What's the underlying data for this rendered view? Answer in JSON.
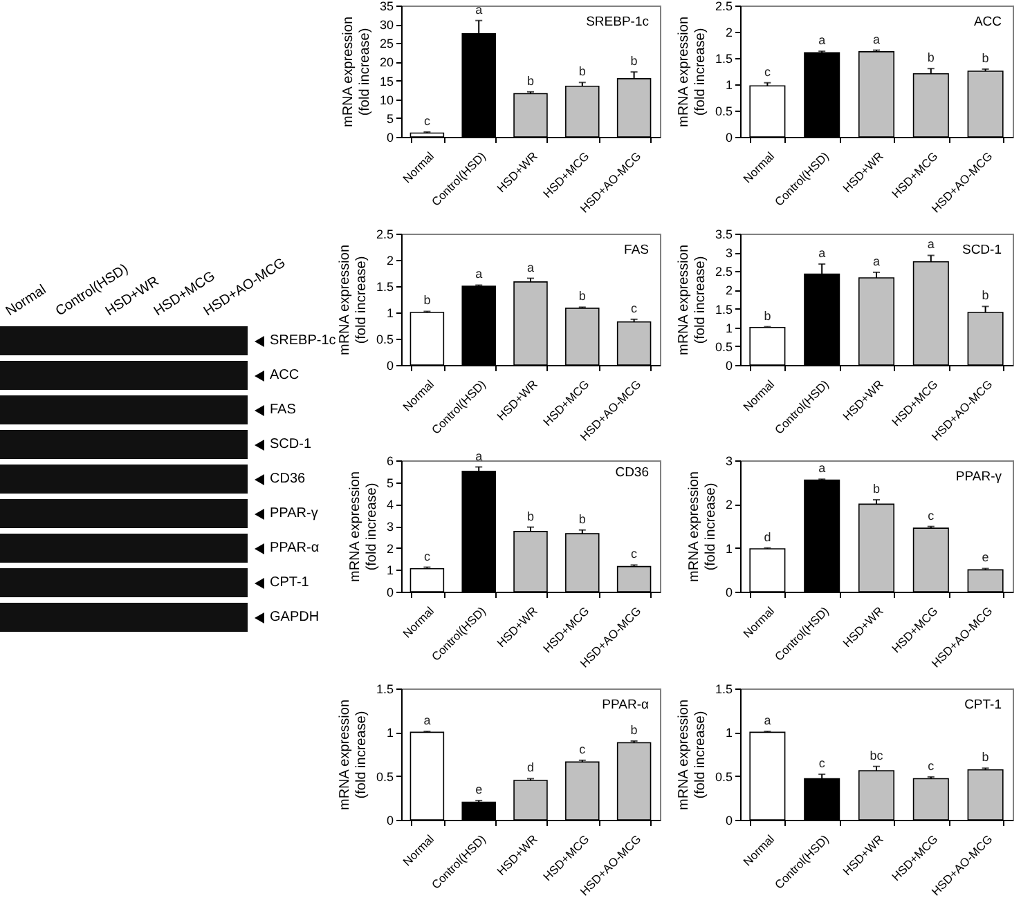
{
  "chart_data": [
    {
      "type": "other",
      "categories": [
        "Normal",
        "Control(HSD)",
        "HSD+WR",
        "HSD+MCG",
        "HSD+AO-MCG"
      ],
      "y_categories": [
        "SREBP-1c",
        "ACC",
        "FAS",
        "SCD-1",
        "CD36",
        "PPAR-γ",
        "PPAR-α",
        "CPT-1",
        "GAPDH"
      ]
    },
    {
      "type": "bar",
      "title": "SREBP-1c",
      "ylabel": "mRNA expression\n(fold increase)",
      "categories": [
        "Normal",
        "Control(HSD)",
        "HSD+WR",
        "HSD+MCG",
        "HSD+AO-MCG"
      ],
      "values": [
        1,
        27.5,
        11.5,
        13.5,
        15.5
      ],
      "colors": [
        "#ffffff",
        "#000000",
        "#c0c0c0",
        "#c0c0c0",
        "#c0c0c0"
      ],
      "errors": [
        [
          1,
          1.3
        ],
        [
          27.5,
          31
        ],
        [
          11.5,
          12
        ],
        [
          13.5,
          14.5
        ],
        [
          15.5,
          17.3
        ]
      ],
      "ylim": [
        0,
        35
      ],
      "yticks": [
        0,
        5,
        10,
        15,
        20,
        25,
        30,
        35
      ],
      "value_labels": [
        "c",
        "a",
        "b",
        "b",
        "b"
      ]
    },
    {
      "type": "bar",
      "title": "ACC",
      "ylabel": "mRNA expression\n(fold increase)",
      "categories": [
        "Normal",
        "Control(HSD)",
        "HSD+WR",
        "HSD+MCG",
        "HSD+AO-MCG"
      ],
      "values": [
        0.97,
        1.6,
        1.62,
        1.2,
        1.25
      ],
      "colors": [
        "#ffffff",
        "#000000",
        "#c0c0c0",
        "#c0c0c0",
        "#c0c0c0"
      ],
      "errors": [
        [
          0.97,
          1.03
        ],
        [
          1.6,
          1.63
        ],
        [
          1.62,
          1.65
        ],
        [
          1.2,
          1.3
        ],
        [
          1.25,
          1.29
        ]
      ],
      "ylim": [
        0,
        2.5
      ],
      "yticks": [
        0,
        0.5,
        1,
        1.5,
        2,
        2.5
      ],
      "value_labels": [
        "c",
        "a",
        "a",
        "b",
        "b"
      ]
    },
    {
      "type": "bar",
      "title": "FAS",
      "ylabel": "mRNA expression\n(fold increase)",
      "categories": [
        "Normal",
        "Control(HSD)",
        "HSD+WR",
        "HSD+MCG",
        "HSD+AO-MCG"
      ],
      "values": [
        1,
        1.5,
        1.58,
        1.08,
        0.82
      ],
      "colors": [
        "#ffffff",
        "#000000",
        "#c0c0c0",
        "#c0c0c0",
        "#c0c0c0"
      ],
      "errors": [
        [
          1,
          1.02
        ],
        [
          1.5,
          1.52
        ],
        [
          1.58,
          1.65
        ],
        [
          1.08,
          1.1
        ],
        [
          0.82,
          0.87
        ]
      ],
      "ylim": [
        0,
        2.5
      ],
      "yticks": [
        0,
        0.5,
        1,
        1.5,
        2,
        2.5
      ],
      "value_labels": [
        "b",
        "a",
        "a",
        "b",
        "c"
      ]
    },
    {
      "type": "bar",
      "title": "SCD-1",
      "ylabel": "mRNA expression\n(fold increase)",
      "categories": [
        "Normal",
        "Control(HSD)",
        "HSD+WR",
        "HSD+MCG",
        "HSD+AO-MCG"
      ],
      "values": [
        1,
        2.42,
        2.32,
        2.75,
        1.4
      ],
      "colors": [
        "#ffffff",
        "#000000",
        "#c0c0c0",
        "#c0c0c0",
        "#c0c0c0"
      ],
      "errors": [
        [
          1,
          1.02
        ],
        [
          2.42,
          2.69
        ],
        [
          2.32,
          2.47
        ],
        [
          2.75,
          2.92
        ],
        [
          1.4,
          1.56
        ]
      ],
      "ylim": [
        0,
        3.5
      ],
      "yticks": [
        0,
        0.5,
        1,
        1.5,
        2,
        2.5,
        3,
        3.5
      ],
      "value_labels": [
        "b",
        "a",
        "a",
        "a",
        "b"
      ]
    },
    {
      "type": "bar",
      "title": "CD36",
      "ylabel": "mRNA expression\n(fold increase)",
      "categories": [
        "Normal",
        "Control(HSD)",
        "HSD+WR",
        "HSD+MCG",
        "HSD+AO-MCG"
      ],
      "values": [
        1.05,
        5.5,
        2.75,
        2.65,
        1.15
      ],
      "colors": [
        "#ffffff",
        "#000000",
        "#c0c0c0",
        "#c0c0c0",
        "#c0c0c0"
      ],
      "errors": [
        [
          1.05,
          1.12
        ],
        [
          5.5,
          5.7
        ],
        [
          2.75,
          2.95
        ],
        [
          2.65,
          2.82
        ],
        [
          1.15,
          1.22
        ]
      ],
      "ylim": [
        0,
        6
      ],
      "yticks": [
        0,
        1,
        2,
        3,
        4,
        5,
        6
      ],
      "value_labels": [
        "c",
        "a",
        "b",
        "b",
        "c"
      ]
    },
    {
      "type": "bar",
      "title": "PPAR-γ",
      "ylabel": "mRNA expression\n(fold increase)",
      "categories": [
        "Normal",
        "Control(HSD)",
        "HSD+WR",
        "HSD+MCG",
        "HSD+AO-MCG"
      ],
      "values": [
        0.98,
        2.55,
        2,
        1.45,
        0.5
      ],
      "colors": [
        "#ffffff",
        "#000000",
        "#c0c0c0",
        "#c0c0c0",
        "#c0c0c0"
      ],
      "errors": [
        [
          0.98,
          1
        ],
        [
          2.55,
          2.57
        ],
        [
          2,
          2.1
        ],
        [
          1.45,
          1.49
        ],
        [
          0.5,
          0.53
        ]
      ],
      "ylim": [
        0,
        3
      ],
      "yticks": [
        0,
        1,
        2,
        3
      ],
      "value_labels": [
        "d",
        "a",
        "b",
        "c",
        "e"
      ]
    },
    {
      "type": "bar",
      "title": "PPAR-α",
      "ylabel": "mRNA expression\n(fold increase)",
      "categories": [
        "Normal",
        "Control(HSD)",
        "HSD+WR",
        "HSD+MCG",
        "HSD+AO-MCG"
      ],
      "values": [
        1,
        0.2,
        0.45,
        0.66,
        0.88
      ],
      "colors": [
        "#ffffff",
        "#000000",
        "#c0c0c0",
        "#c0c0c0",
        "#c0c0c0"
      ],
      "errors": [
        [
          1,
          1.01
        ],
        [
          0.2,
          0.22
        ],
        [
          0.45,
          0.47
        ],
        [
          0.66,
          0.68
        ],
        [
          0.88,
          0.9
        ]
      ],
      "ylim": [
        0,
        1.5
      ],
      "yticks": [
        0,
        0.5,
        1,
        1.5
      ],
      "value_labels": [
        "a",
        "e",
        "d",
        "c",
        "b"
      ]
    },
    {
      "type": "bar",
      "title": "CPT-1",
      "ylabel": "mRNA expression\n(fold increase)",
      "categories": [
        "Normal",
        "Control(HSD)",
        "HSD+WR",
        "HSD+MCG",
        "HSD+AO-MCG"
      ],
      "values": [
        1,
        0.47,
        0.56,
        0.47,
        0.57
      ],
      "colors": [
        "#ffffff",
        "#000000",
        "#c0c0c0",
        "#c0c0c0",
        "#c0c0c0"
      ],
      "errors": [
        [
          1,
          1.01
        ],
        [
          0.47,
          0.52
        ],
        [
          0.56,
          0.61
        ],
        [
          0.47,
          0.49
        ],
        [
          0.57,
          0.59
        ]
      ],
      "ylim": [
        0,
        1.5
      ],
      "yticks": [
        0,
        0.5,
        1,
        1.5
      ],
      "value_labels": [
        "a",
        "c",
        "bc",
        "c",
        "b"
      ]
    }
  ]
}
